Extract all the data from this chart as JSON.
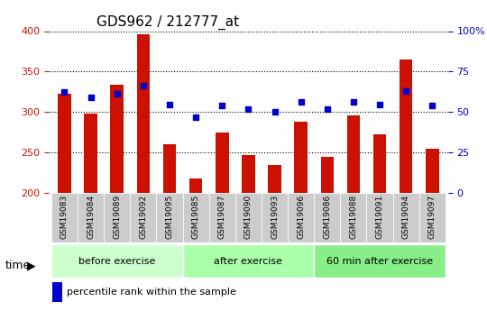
{
  "title": "GDS962 / 212777_at",
  "categories": [
    "GSM19083",
    "GSM19084",
    "GSM19089",
    "GSM19092",
    "GSM19095",
    "GSM19085",
    "GSM19087",
    "GSM19090",
    "GSM19093",
    "GSM19096",
    "GSM19086",
    "GSM19088",
    "GSM19091",
    "GSM19094",
    "GSM19097"
  ],
  "bar_values": [
    322,
    298,
    334,
    396,
    260,
    218,
    275,
    247,
    235,
    288,
    245,
    296,
    272,
    365,
    255
  ],
  "dot_values": [
    325,
    318,
    323,
    332,
    309,
    294,
    308,
    304,
    300,
    313,
    304,
    313,
    309,
    326,
    308
  ],
  "groups": [
    {
      "label": "before exercise",
      "start": 0,
      "end": 5,
      "color": "#ccffcc"
    },
    {
      "label": "after exercise",
      "start": 5,
      "end": 10,
      "color": "#aaffaa"
    },
    {
      "label": "60 min after exercise",
      "start": 10,
      "end": 15,
      "color": "#88ee88"
    }
  ],
  "ylim_left": [
    200,
    400
  ],
  "ylim_right": [
    0,
    100
  ],
  "bar_color": "#cc1100",
  "dot_color": "#0000cc",
  "grid_color": "#000000",
  "axis_left_color": "#cc1100",
  "axis_right_color": "#0000cc",
  "ylabel_left": "",
  "ylabel_right": "",
  "background_color": "#ffffff",
  "plot_bg_color": "#ffffff",
  "tick_label_area_color": "#cccccc",
  "time_label": "time"
}
